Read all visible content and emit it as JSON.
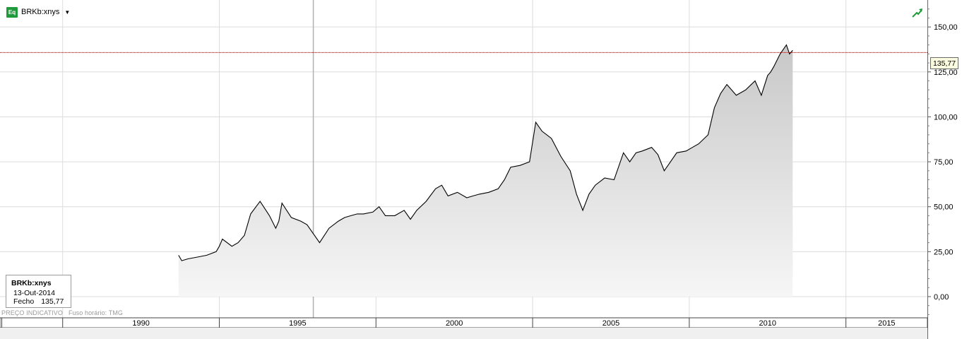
{
  "header": {
    "ticker": "BRKb:xnys",
    "icon": "equity-icon",
    "icon_text": "Eq"
  },
  "info_box": {
    "ticker": "BRKb:xnys",
    "date": "13-Out-2014",
    "close_label": "Fecho",
    "close_value": "135,77"
  },
  "footer": {
    "indicative": "PREÇO INDICATIVO",
    "timezone": "Fuso horário: TMG"
  },
  "last_price_label": "135,77",
  "colors": {
    "line": "#000000",
    "area_top": "#c8c8c8",
    "area_bottom": "#f6f6f6",
    "price_line": "#8b0000",
    "accent": "#1f9a3a"
  },
  "chart_data": {
    "type": "area",
    "title": "",
    "xlabel": "",
    "ylabel": "",
    "grid": true,
    "x_ticks": [
      "1990",
      "1995",
      "2000",
      "2005",
      "2010",
      "2015"
    ],
    "y_ticks": [
      "0,00",
      "25,00",
      "50,00",
      "75,00",
      "100,00",
      "125,00",
      "150,00"
    ],
    "xlim": [
      1988.0,
      2017.6
    ],
    "ylim": [
      -11.8,
      165
    ],
    "last_price": 135.77,
    "series": [
      {
        "x": [
          1993.7,
          1993.8,
          1994.0,
          1994.3,
          1994.6,
          1994.9,
          1995.0,
          1995.1,
          1995.4,
          1995.6,
          1995.8,
          1996.0,
          1996.3,
          1996.6,
          1996.8,
          1996.9,
          1997.0,
          1997.3,
          1997.6,
          1997.8,
          1998.0,
          1998.2,
          1998.5,
          1998.8,
          1999.0,
          1999.2,
          1999.4,
          1999.6,
          1999.9,
          2000.1,
          2000.3,
          2000.6,
          2000.9,
          2001.1,
          2001.3,
          2001.6,
          2001.9,
          2002.1,
          2002.3,
          2002.6,
          2002.9,
          2003.1,
          2003.3,
          2003.6,
          2003.9,
          2004.1,
          2004.3,
          2004.6,
          2004.9,
          2005.1,
          2005.3,
          2005.6,
          2005.9,
          2006.2,
          2006.4,
          2006.6,
          2006.8,
          2007.0,
          2007.3,
          2007.6,
          2007.9,
          2008.1,
          2008.3,
          2008.5,
          2008.8,
          2009.0,
          2009.2,
          2009.4,
          2009.6,
          2009.9,
          2010.1,
          2010.3,
          2010.6,
          2010.8,
          2011.0,
          2011.2,
          2011.5,
          2011.8,
          2012.1,
          2012.3,
          2012.5,
          2012.6,
          2012.7,
          2012.9,
          2013.1,
          2013.2,
          2013.3
        ],
        "y": [
          23,
          20,
          21,
          22,
          23,
          25,
          28,
          32,
          28,
          30,
          34,
          46,
          53,
          45,
          38,
          42,
          52,
          44,
          42,
          40,
          35,
          30,
          38,
          42,
          44,
          45,
          46,
          46,
          47,
          50,
          45,
          45,
          48,
          43,
          48,
          53,
          60,
          62,
          56,
          58,
          55,
          56,
          57,
          58,
          60,
          65,
          72,
          73,
          75,
          97,
          92,
          88,
          78,
          70,
          57,
          48,
          57,
          62,
          66,
          65,
          80,
          75,
          80,
          81,
          83,
          79,
          70,
          75,
          80,
          81,
          83,
          85,
          90,
          105,
          113,
          118,
          112,
          115,
          120,
          112,
          123,
          125,
          128,
          135,
          140,
          135,
          137
        ]
      }
    ]
  }
}
